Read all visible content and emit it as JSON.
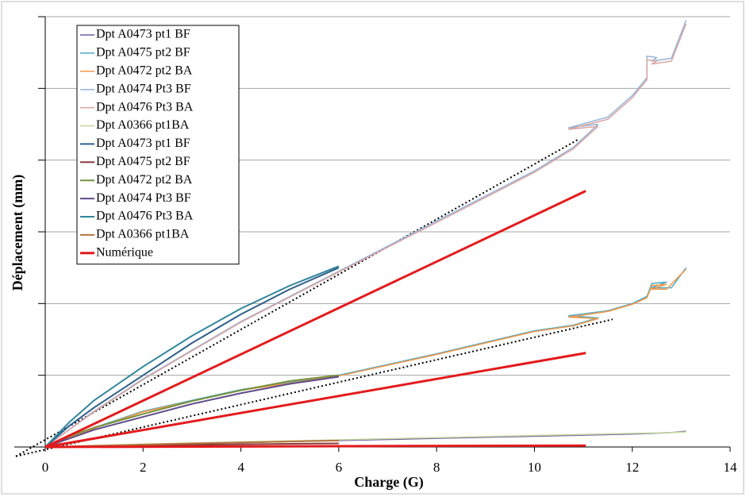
{
  "chart_data": {
    "type": "line",
    "x_label": "Charge (G)",
    "y_label": "Déplacement (mm)",
    "xlim": [
      0,
      14
    ],
    "xticks": [
      0,
      2,
      4,
      6,
      8,
      10,
      12,
      14
    ],
    "ylim": [
      0,
      6
    ],
    "yticks": [
      0,
      1,
      2,
      3,
      4,
      5,
      6
    ],
    "grid": true,
    "legend": "top-left",
    "series": [
      {
        "name": "Dpt A0473 pt1 BF",
        "color": "#6f5fa8",
        "width": 1.5,
        "x": [
          0,
          2,
          4,
          6,
          8,
          10,
          12,
          12.8,
          13.1
        ],
        "values": [
          0,
          0.03,
          0.06,
          0.09,
          0.12,
          0.15,
          0.18,
          0.2,
          0.22
        ]
      },
      {
        "name": "Dpt A0475 pt2 BF",
        "color": "#4bacc6",
        "width": 1.5,
        "x": [
          0,
          1,
          2,
          4,
          6,
          8,
          10,
          10.8,
          11.3,
          10.7,
          11.5,
          12,
          12.3,
          12.4,
          12.7,
          12.4,
          12.8,
          13.1
        ],
        "values": [
          0,
          0.27,
          0.5,
          0.8,
          1.0,
          1.3,
          1.62,
          1.7,
          1.8,
          1.83,
          1.9,
          2.0,
          2.1,
          2.28,
          2.3,
          2.22,
          2.22,
          2.5
        ]
      },
      {
        "name": "Dpt A0472 pt2 BA",
        "color": "#f79646",
        "width": 1.5,
        "x": [
          0,
          1,
          2,
          4,
          6,
          8,
          10,
          10.8,
          11.3,
          10.7,
          11.5,
          12,
          12.3,
          12.4,
          12.7,
          12.4,
          12.7,
          13.1
        ],
        "values": [
          0,
          0.26,
          0.49,
          0.79,
          0.99,
          1.29,
          1.61,
          1.69,
          1.79,
          1.81,
          1.89,
          1.99,
          2.08,
          2.25,
          2.27,
          2.2,
          2.2,
          2.48
        ]
      },
      {
        "name": "Dpt A0474 Pt3 BF",
        "color": "#95b3d7",
        "width": 1.5,
        "x": [
          0,
          1,
          2,
          4,
          6,
          8,
          10,
          10.8,
          11.3,
          10.7,
          11.5,
          12,
          12.3,
          12.3,
          12.5,
          12.4,
          12.8,
          13.1
        ],
        "values": [
          0,
          0.5,
          0.95,
          1.75,
          2.45,
          3.15,
          3.85,
          4.18,
          4.5,
          4.45,
          4.6,
          4.9,
          5.15,
          5.45,
          5.43,
          5.38,
          5.42,
          5.95
        ]
      },
      {
        "name": "Dpt A0476 Pt3 BA",
        "color": "#d9a5a3",
        "width": 1.5,
        "x": [
          0,
          1,
          2,
          4,
          6,
          8,
          10,
          10.8,
          11.3,
          10.7,
          11.5,
          12,
          12.3,
          12.3,
          12.5,
          12.4,
          12.8,
          13.1
        ],
        "values": [
          0,
          0.49,
          0.94,
          1.74,
          2.44,
          3.13,
          3.83,
          4.16,
          4.47,
          4.43,
          4.57,
          4.87,
          5.12,
          5.4,
          5.38,
          5.34,
          5.38,
          5.9
        ]
      },
      {
        "name": "Dpt A0366 pt1BA",
        "color": "#c4d79b",
        "width": 1.5,
        "x": [
          0,
          2,
          4,
          6,
          8,
          10,
          12,
          12.8,
          13.1
        ],
        "values": [
          0,
          0.04,
          0.07,
          0.1,
          0.13,
          0.16,
          0.19,
          0.2,
          0.21
        ]
      },
      {
        "name": "Dpt A0473 pt1 BF",
        "color": "#2e5f8a",
        "width": 2,
        "x": [
          0,
          0.5,
          1,
          2,
          3,
          4,
          5,
          6
        ],
        "values": [
          0,
          0.3,
          0.55,
          1.0,
          1.45,
          1.85,
          2.2,
          2.5
        ]
      },
      {
        "name": "Dpt A0475 pt2 BF",
        "color": "#8b3a3a",
        "width": 2,
        "x": [
          0,
          3,
          6
        ],
        "values": [
          0,
          0.03,
          0.05
        ]
      },
      {
        "name": "Dpt A0472 pt2 BA",
        "color": "#76923c",
        "width": 2,
        "x": [
          0,
          0.5,
          1,
          2,
          3,
          4,
          5,
          6
        ],
        "values": [
          0,
          0.15,
          0.27,
          0.46,
          0.64,
          0.79,
          0.92,
          1.0
        ]
      },
      {
        "name": "Dpt A0474 Pt3 BF",
        "color": "#5f4b8b",
        "width": 2,
        "x": [
          0,
          0.5,
          1,
          2,
          3,
          4,
          5,
          6
        ],
        "values": [
          0,
          0.12,
          0.24,
          0.42,
          0.6,
          0.75,
          0.88,
          0.98
        ]
      },
      {
        "name": "Dpt A0476 Pt3 BA",
        "color": "#31859c",
        "width": 2,
        "x": [
          0,
          0.5,
          1,
          2,
          3,
          4,
          5,
          6
        ],
        "values": [
          0,
          0.35,
          0.65,
          1.12,
          1.55,
          1.93,
          2.25,
          2.52
        ]
      },
      {
        "name": "Dpt A0366 pt1BA",
        "color": "#b5753a",
        "width": 2,
        "x": [
          0,
          3,
          6
        ],
        "values": [
          0,
          0.05,
          0.09
        ]
      },
      {
        "name": "Numérique",
        "color": "#e31a1c",
        "width": 3,
        "x": [
          0,
          11.05,
          11.05,
          0,
          11.05,
          11.05,
          0,
          11.05
        ],
        "values": [
          0,
          3.57,
          null,
          0,
          1.31,
          null,
          0,
          0.02
        ]
      }
    ],
    "trendlines": [
      {
        "color": "#000000",
        "x": [
          -0.6,
          10.9
        ],
        "values": [
          -0.13,
          4.29
        ]
      },
      {
        "color": "#000000",
        "x": [
          -0.6,
          11.6
        ],
        "values": [
          -0.13,
          1.78
        ]
      }
    ]
  }
}
